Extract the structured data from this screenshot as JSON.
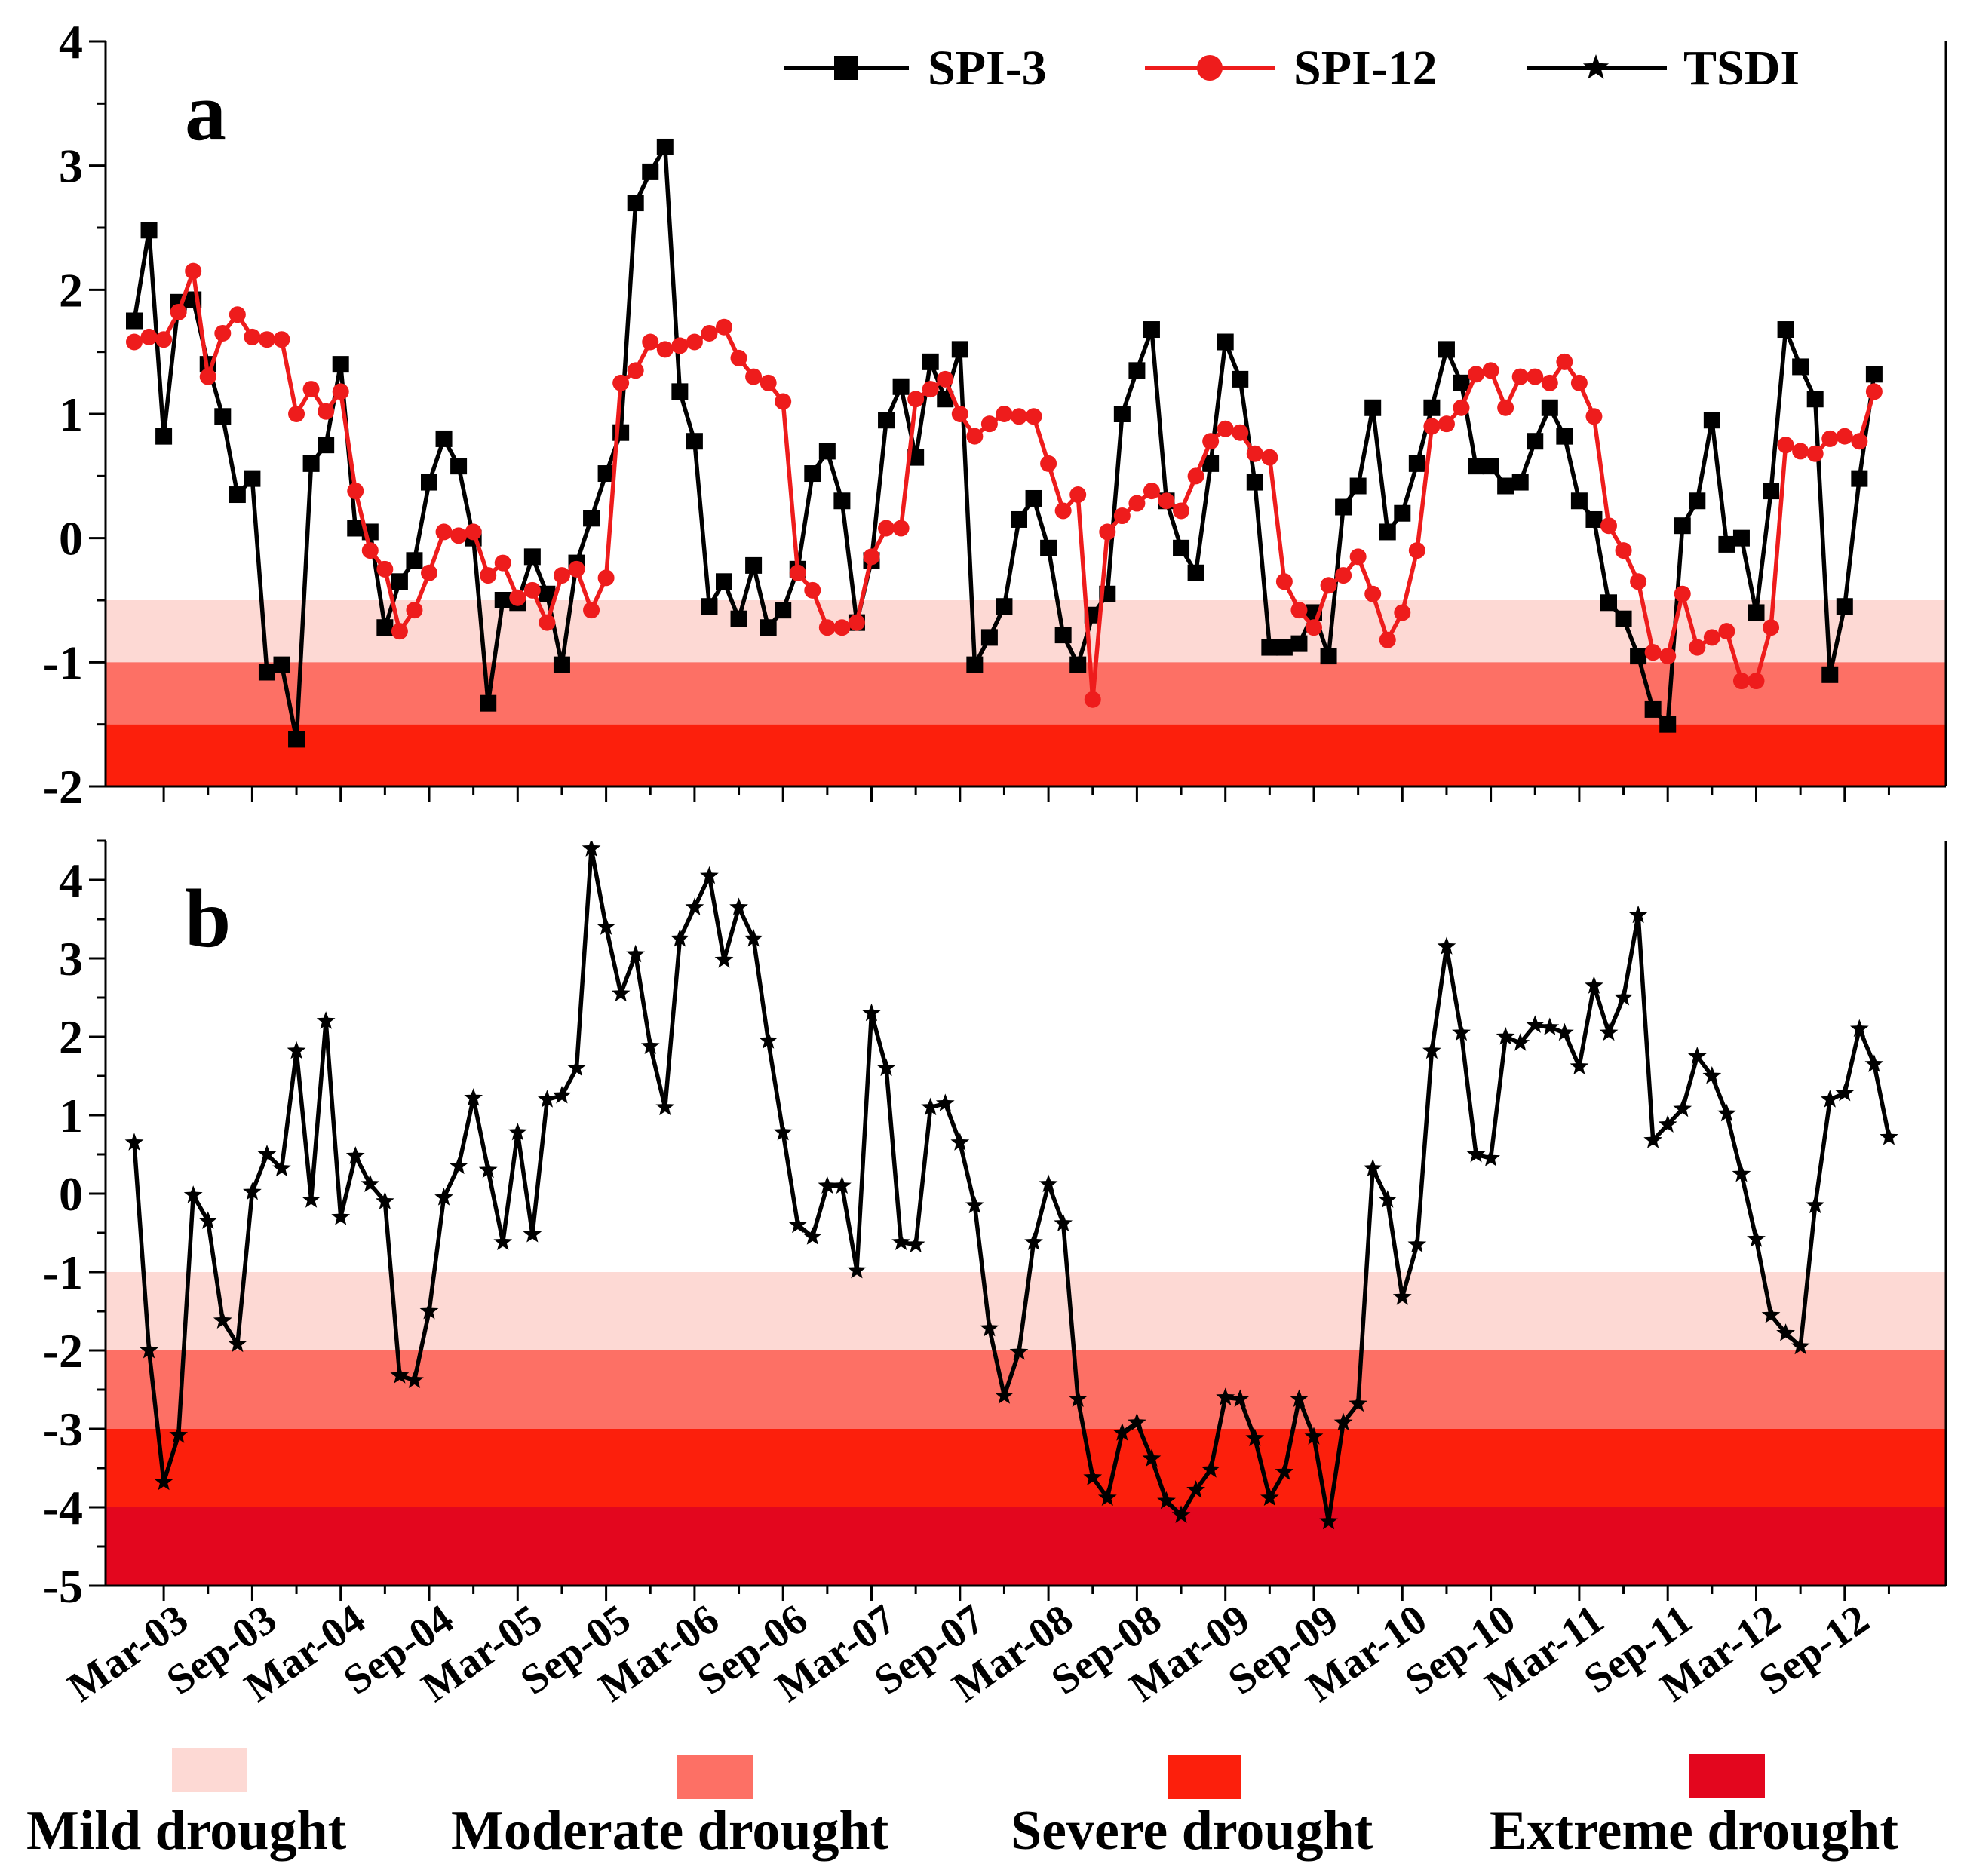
{
  "chart_data": [
    {
      "panel": "a",
      "type": "line",
      "ylim": [
        -2,
        4
      ],
      "yticks": [
        "-2",
        "-1",
        "0",
        "1",
        "2",
        "3",
        "4"
      ],
      "thresholds": [
        {
          "band": "Mild drought",
          "from": -1.0,
          "to": -0.5,
          "color": "#fdd9d4"
        },
        {
          "band": "Moderate drought",
          "from": -1.5,
          "to": -1.0,
          "color": "#fd7065"
        },
        {
          "band": "Severe drought",
          "from": -2.0,
          "to": -1.5,
          "color": "#fc1f0c"
        }
      ],
      "legend": [
        "SPI-3",
        "SPI-12",
        "TSDI"
      ],
      "series": [
        {
          "name": "SPI-3",
          "color": "#000000",
          "marker": "square",
          "values": [
            1.75,
            2.48,
            0.82,
            1.9,
            1.92,
            1.4,
            0.98,
            0.35,
            0.48,
            -1.08,
            -1.02,
            -1.62,
            0.6,
            0.75,
            1.4,
            0.08,
            0.05,
            -0.72,
            -0.35,
            -0.18,
            0.45,
            0.8,
            0.58,
            0.0,
            -1.33,
            -0.5,
            -0.52,
            -0.15,
            -0.45,
            -1.02,
            -0.2,
            0.16,
            0.52,
            0.85,
            2.7,
            2.95,
            3.15,
            1.18,
            0.78,
            -0.55,
            -0.35,
            -0.65,
            -0.22,
            -0.72,
            -0.58,
            -0.25,
            0.52,
            0.7,
            0.3,
            -0.68,
            -0.18,
            0.95,
            1.22,
            0.65,
            1.42,
            1.12,
            1.52,
            -1.02,
            -0.8,
            -0.55,
            0.15,
            0.32,
            -0.08,
            -0.78,
            -1.02,
            -0.62,
            -0.45,
            1.0,
            1.35,
            1.68,
            0.3,
            -0.08,
            -0.28,
            0.6,
            1.58,
            1.28,
            0.45,
            -0.88,
            -0.88,
            -0.85,
            -0.6,
            -0.95,
            0.25,
            0.42,
            1.05,
            0.05,
            0.2,
            0.6,
            1.05,
            1.52,
            1.25,
            0.58,
            0.58,
            0.42,
            0.45,
            0.78,
            1.05,
            0.82,
            0.3,
            0.15,
            -0.52,
            -0.65,
            -0.95,
            -1.38,
            -1.5,
            0.1,
            0.3,
            0.95,
            -0.05,
            0.0,
            -0.6,
            0.38,
            1.68,
            1.38,
            1.12,
            -1.1,
            -0.55,
            0.48,
            1.32
          ]
        },
        {
          "name": "SPI-12",
          "color": "#ee1c1c",
          "marker": "circle",
          "values": [
            1.58,
            1.62,
            1.6,
            1.82,
            2.15,
            1.3,
            1.65,
            1.8,
            1.62,
            1.6,
            1.6,
            1.0,
            1.2,
            1.02,
            1.18,
            0.38,
            -0.1,
            -0.25,
            -0.75,
            -0.58,
            -0.28,
            0.05,
            0.02,
            0.05,
            -0.3,
            -0.2,
            -0.48,
            -0.42,
            -0.68,
            -0.3,
            -0.25,
            -0.58,
            -0.32,
            1.25,
            1.35,
            1.58,
            1.52,
            1.55,
            1.58,
            1.65,
            1.7,
            1.45,
            1.3,
            1.25,
            1.1,
            -0.28,
            -0.42,
            -0.72,
            -0.72,
            -0.68,
            -0.15,
            0.08,
            0.08,
            1.12,
            1.2,
            1.28,
            1.0,
            0.82,
            0.92,
            1.0,
            0.98,
            0.98,
            0.6,
            0.22,
            0.35,
            -1.3,
            0.05,
            0.18,
            0.28,
            0.38,
            0.3,
            0.22,
            0.5,
            0.78,
            0.88,
            0.85,
            0.68,
            0.65,
            -0.35,
            -0.58,
            -0.72,
            -0.38,
            -0.3,
            -0.15,
            -0.45,
            -0.82,
            -0.6,
            -0.1,
            0.9,
            0.92,
            1.05,
            1.32,
            1.35,
            1.05,
            1.3,
            1.3,
            1.25,
            1.42,
            1.25,
            0.98,
            0.1,
            -0.1,
            -0.35,
            -0.92,
            -0.95,
            -0.45,
            -0.88,
            -0.8,
            -0.75,
            -1.15,
            -1.15,
            -0.72,
            0.75,
            0.7,
            0.68,
            0.8,
            0.82,
            0.78,
            1.18
          ]
        }
      ]
    },
    {
      "panel": "b",
      "type": "line",
      "ylim": [
        -5,
        4.5
      ],
      "yticks": [
        "-5",
        "-4",
        "-3",
        "-2",
        "-1",
        "0",
        "1",
        "2",
        "3",
        "4"
      ],
      "thresholds": [
        {
          "band": "Mild drought",
          "from": -2.0,
          "to": -1.0,
          "color": "#fdd9d4"
        },
        {
          "band": "Moderate drought",
          "from": -3.0,
          "to": -2.0,
          "color": "#fd7065"
        },
        {
          "band": "Severe drought",
          "from": -4.0,
          "to": -3.0,
          "color": "#fc1f0c"
        },
        {
          "band": "Extreme drought",
          "from": -5.0,
          "to": -4.0,
          "color": "#e3061e"
        }
      ],
      "series": [
        {
          "name": "TSDI",
          "color": "#000000",
          "marker": "star",
          "values": [
            0.65,
            -2.0,
            -3.68,
            -3.08,
            -0.02,
            -0.35,
            -1.62,
            -1.92,
            0.02,
            0.5,
            0.32,
            1.82,
            -0.08,
            2.2,
            -0.3,
            0.48,
            0.12,
            -0.1,
            -2.32,
            -2.38,
            -1.5,
            -0.05,
            0.35,
            1.22,
            0.3,
            -0.62,
            0.78,
            -0.52,
            1.2,
            1.25,
            1.6,
            4.4,
            3.4,
            2.55,
            3.05,
            1.88,
            1.1,
            3.25,
            3.65,
            4.05,
            2.98,
            3.65,
            3.25,
            1.95,
            0.78,
            -0.4,
            -0.55,
            0.1,
            0.1,
            -0.98,
            2.3,
            1.6,
            -0.62,
            -0.65,
            1.1,
            1.15,
            0.65,
            -0.15,
            -1.72,
            -2.58,
            -2.02,
            -0.62,
            0.12,
            -0.38,
            -2.62,
            -3.62,
            -3.88,
            -3.05,
            -2.92,
            -3.38,
            -3.92,
            -4.1,
            -3.78,
            -3.52,
            -2.6,
            -2.62,
            -3.12,
            -3.88,
            -3.55,
            -2.62,
            -3.1,
            -4.18,
            -2.92,
            -2.68,
            0.32,
            -0.08,
            -1.32,
            -0.65,
            1.82,
            3.15,
            2.05,
            0.5,
            0.45,
            2.0,
            1.92,
            2.15,
            2.12,
            2.05,
            1.62,
            2.65,
            2.05,
            2.5,
            3.55,
            0.68,
            0.88,
            1.08,
            1.75,
            1.5,
            1.02,
            0.25,
            -0.58,
            -1.55,
            -1.78,
            -1.95,
            -0.15,
            1.2,
            1.28,
            2.1,
            1.65,
            0.72
          ]
        }
      ]
    }
  ],
  "x_axis": {
    "labels": [
      "Mar-03",
      "Sep-03",
      "Mar-04",
      "Sep-04",
      "Mar-05",
      "Sep-05",
      "Mar-06",
      "Sep-06",
      "Mar-07",
      "Sep-07",
      "Mar-08",
      "Sep-08",
      "Mar-09",
      "Sep-09",
      "Mar-10",
      "Sep-10",
      "Mar-11",
      "Sep-11",
      "Mar-12",
      "Sep-12"
    ],
    "first_point_month": "Jan-03",
    "months_per_label": 6
  },
  "legend_labels": {
    "spi3": "SPI-3",
    "spi12": "SPI-12",
    "tsdi": "TSDI"
  },
  "panel_labels": {
    "a": "a",
    "b": "b"
  },
  "band_legend": [
    {
      "label": "Mild drought",
      "color": "#fdd9d4"
    },
    {
      "label": "Moderate drought",
      "color": "#fd7065"
    },
    {
      "label": "Severe drought",
      "color": "#fc1f0c"
    },
    {
      "label": "Extreme drought",
      "color": "#e3061e"
    }
  ]
}
